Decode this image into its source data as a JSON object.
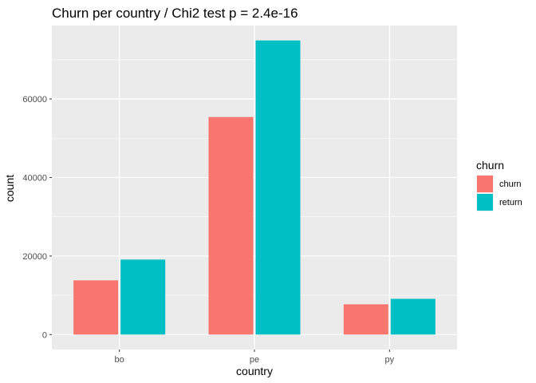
{
  "chart_data": {
    "type": "bar",
    "title": "Churn per country / Chi2 test p = 2.4e-16",
    "xlabel": "country",
    "ylabel": "count",
    "categories": [
      "bo",
      "pe",
      "py"
    ],
    "series": [
      {
        "name": "churn",
        "color": "#F8766D",
        "values": [
          13800,
          55400,
          7700
        ]
      },
      {
        "name": "return",
        "color": "#00BFC4",
        "values": [
          19100,
          74900,
          9100
        ]
      }
    ],
    "ylim": [
      -3800,
      78700
    ],
    "yticks": [
      0,
      20000,
      40000,
      60000
    ],
    "ytick_labels": [
      "0",
      "20000",
      "40000",
      "60000"
    ],
    "grid": true,
    "legend": {
      "title": "churn",
      "position": "right"
    },
    "panel_background": "#EBEBEB"
  }
}
